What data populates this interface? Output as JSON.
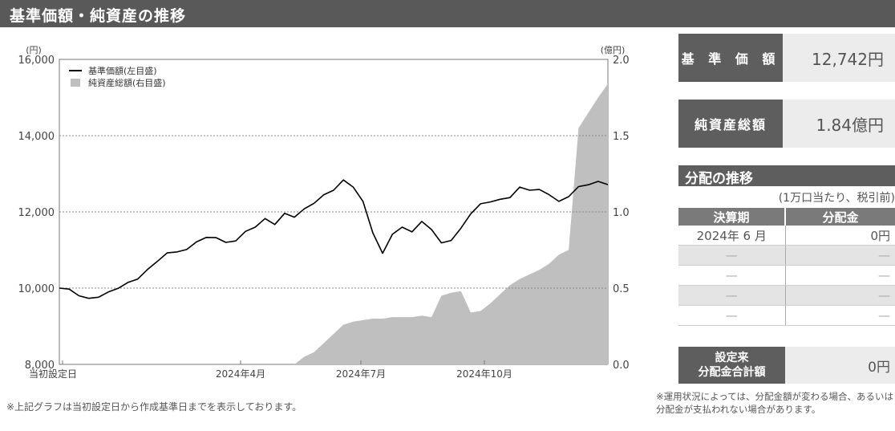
{
  "header": {
    "title": "基準価額・純資産の推移"
  },
  "chart_data": {
    "type": "line",
    "x_ticks": [
      "当初設定日",
      "2024年4月",
      "2024年7月",
      "2024年10月"
    ],
    "left_axis": {
      "unit": "(円)",
      "range": [
        8000,
        16000
      ],
      "ticks": [
        "8,000",
        "10,000",
        "12,000",
        "14,000",
        "16,000"
      ]
    },
    "right_axis": {
      "unit": "(億円)",
      "range": [
        0.0,
        2.0
      ],
      "ticks": [
        "0.0",
        "0.5",
        "1.0",
        "1.5",
        "2.0"
      ]
    },
    "legend": {
      "placement": "top-left",
      "items": [
        "基準価額(左目盛)",
        "純資産総額(右目盛)"
      ]
    },
    "series": [
      {
        "name": "基準価額(左目盛)",
        "type": "line",
        "axis": "left",
        "color": "#000000",
        "values": [
          10000,
          9950,
          9850,
          9720,
          9800,
          9900,
          10020,
          10100,
          10250,
          10450,
          10700,
          10900,
          11000,
          11000,
          11250,
          11330,
          11350,
          11150,
          11250,
          11450,
          11600,
          11800,
          11720,
          11950,
          11900,
          12080,
          12250,
          12400,
          12580,
          12800,
          12650,
          12250,
          11500,
          10900,
          11450,
          11600,
          11500,
          11700,
          11550,
          11150,
          11250,
          11550,
          12000,
          12200,
          12300,
          12330,
          12400,
          12600,
          12580,
          12550,
          12450,
          12250,
          12450,
          12650,
          12750,
          12800,
          12742
        ]
      },
      {
        "name": "純資産総額(右目盛)",
        "type": "area",
        "axis": "right",
        "color": "#bfbfbf",
        "values": [
          0,
          0,
          0,
          0,
          0,
          0,
          0,
          0,
          0,
          0,
          0,
          0,
          0,
          0,
          0,
          0,
          0,
          0,
          0,
          0,
          0,
          0,
          0,
          0,
          0,
          0.05,
          0.08,
          0.14,
          0.2,
          0.26,
          0.28,
          0.29,
          0.3,
          0.3,
          0.31,
          0.31,
          0.31,
          0.32,
          0.31,
          0.45,
          0.47,
          0.48,
          0.34,
          0.35,
          0.4,
          0.46,
          0.52,
          0.56,
          0.59,
          0.62,
          0.66,
          0.72,
          0.75,
          1.55,
          1.65,
          1.75,
          1.84
        ]
      }
    ]
  },
  "note": "※上記グラフは当初設定日から作成基準日までを表示しております。",
  "summary": {
    "nav_label": "基 準 価 額",
    "nav_value": "12,742円",
    "assets_label": "純資産総額",
    "assets_value": "1.84億円"
  },
  "distribution": {
    "title": "分配の推移",
    "subtitle": "(1万口当たり、税引前)",
    "headers": [
      "決算期",
      "分配金"
    ],
    "rows": [
      [
        "2024年 6 月",
        "0円"
      ],
      [
        "—",
        "—"
      ],
      [
        "—",
        "—"
      ],
      [
        "—",
        "—"
      ],
      [
        "—",
        "—"
      ]
    ],
    "total_label_1": "設定来",
    "total_label_2": "分配金合計額",
    "total_value": "0円",
    "footnote": "※運用状況によっては、分配金額が変わる場合、あるいは分配金が支払われない場合があります。"
  },
  "colors": {
    "header_bg": "#595959",
    "label_bg": "#5e5e5e",
    "value_bg": "#ececec",
    "nav_line": "#000000",
    "assets_area": "#bfbfbf"
  }
}
